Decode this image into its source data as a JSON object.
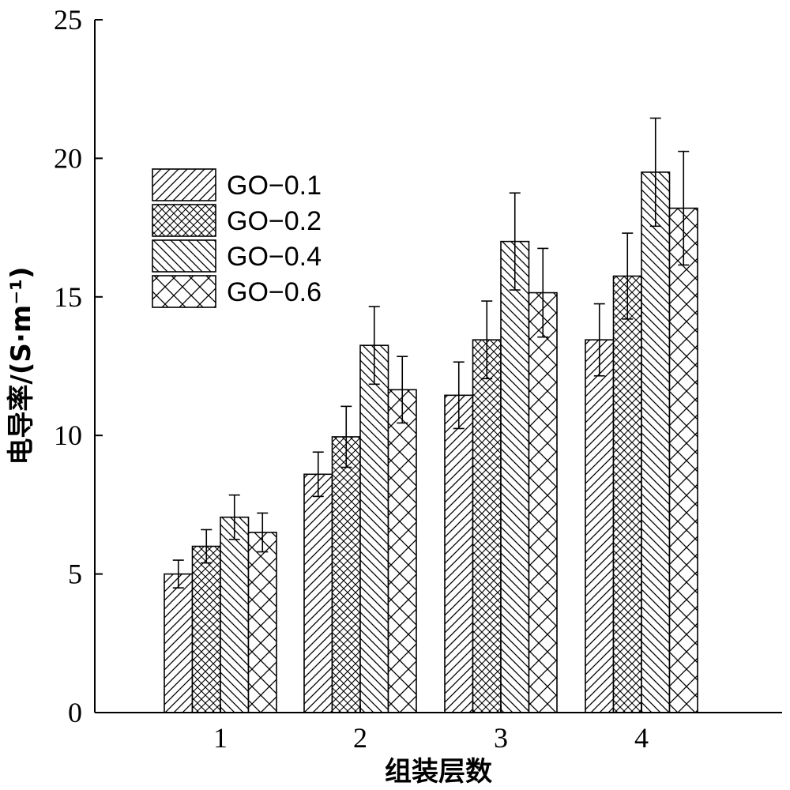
{
  "chart_data": {
    "type": "bar",
    "xlabel": "组装层数",
    "ylabel": "电导率/(S·m⁻¹)",
    "categories": [
      "1",
      "2",
      "3",
      "4"
    ],
    "ylim": [
      0,
      25
    ],
    "yticks": [
      0,
      5,
      10,
      15,
      20,
      25
    ],
    "legend_position": "top-left",
    "series": [
      {
        "name": "GO−0.1",
        "pattern": "diag-right",
        "values": [
          5.0,
          8.6,
          11.45,
          13.45
        ],
        "errors": [
          0.5,
          0.8,
          1.2,
          1.3
        ]
      },
      {
        "name": "GO−0.2",
        "pattern": "cross",
        "values": [
          6.0,
          9.95,
          13.45,
          15.75
        ],
        "errors": [
          0.6,
          1.1,
          1.4,
          1.55
        ]
      },
      {
        "name": "GO−0.4",
        "pattern": "diag-left",
        "values": [
          7.05,
          13.25,
          17.0,
          19.5
        ],
        "errors": [
          0.8,
          1.4,
          1.75,
          1.95
        ]
      },
      {
        "name": "GO−0.6",
        "pattern": "diamond",
        "values": [
          6.5,
          11.65,
          15.15,
          18.2
        ],
        "errors": [
          0.7,
          1.2,
          1.6,
          2.05
        ]
      }
    ]
  }
}
